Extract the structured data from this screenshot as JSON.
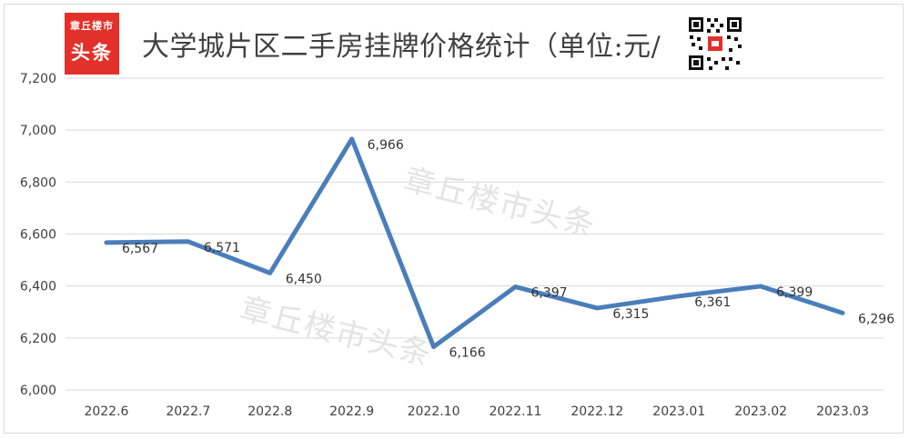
{
  "header": {
    "logo_line1": "章丘楼市",
    "logo_line2": "头条",
    "title": "大学城片区二手房挂牌价格统计（单位:元/"
  },
  "watermark": [
    "章丘楼市头条",
    "章丘楼市头条"
  ],
  "colors": {
    "line": "#4a7ebb",
    "grid": "#d9d9d9",
    "logo": "#e4302a",
    "text": "#404040"
  },
  "chart_data": {
    "type": "line",
    "title": "大学城片区二手房挂牌价格统计（单位:元/",
    "categories": [
      "2022.6",
      "2022.7",
      "2022.8",
      "2022.9",
      "2022.10",
      "2022.11",
      "2022.12",
      "2023.01",
      "2023.02",
      "2023.03"
    ],
    "values": [
      6567,
      6571,
      6450,
      6966,
      6166,
      6397,
      6315,
      6361,
      6399,
      6296
    ],
    "data_labels": [
      "6,567",
      "6,571",
      "6,450",
      "6,966",
      "6,166",
      "6,397",
      "6,315",
      "6,361",
      "6,399",
      "6,296"
    ],
    "y_ticks": [
      6000,
      6200,
      6400,
      6600,
      6800,
      7000,
      7200
    ],
    "y_tick_labels": [
      "6,000",
      "6,200",
      "6,400",
      "6,600",
      "6,800",
      "7,000",
      "7,200"
    ],
    "ylim": [
      6000,
      7200
    ],
    "grid": true,
    "legend": "none"
  }
}
